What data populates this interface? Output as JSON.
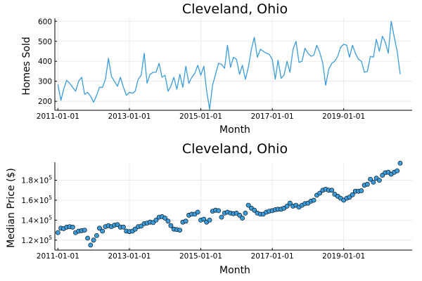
{
  "chart_data": [
    {
      "type": "line",
      "title": "Cleveland, Ohio",
      "xlabel": "Month",
      "ylabel": "Homes Sold",
      "x_type": "date",
      "x_start": "2011-01-01",
      "x_step": "1 month",
      "xlim": [
        "2010-12-01",
        "2020-12-01"
      ],
      "ylim": [
        155,
        615
      ],
      "xticks": [
        "2011-01-01",
        "2013-01-01",
        "2015-01-01",
        "2017-01-01",
        "2019-01-01"
      ],
      "yticks": [
        200,
        300,
        400,
        500,
        600
      ],
      "ytick_labels": [
        "200",
        "300",
        "400",
        "500",
        "600"
      ],
      "grid": true,
      "color": "#3b9cdb",
      "series": [
        {
          "values": [
            285,
            205,
            260,
            305,
            290,
            270,
            250,
            300,
            320,
            235,
            245,
            225,
            195,
            230,
            270,
            270,
            310,
            415,
            325,
            300,
            275,
            320,
            270,
            230,
            245,
            240,
            250,
            310,
            330,
            440,
            290,
            335,
            345,
            345,
            390,
            320,
            330,
            250,
            275,
            320,
            260,
            335,
            270,
            375,
            290,
            320,
            340,
            380,
            330,
            375,
            255,
            160,
            280,
            335,
            390,
            385,
            365,
            480,
            370,
            420,
            410,
            335,
            380,
            310,
            370,
            460,
            520,
            420,
            460,
            450,
            440,
            435,
            410,
            310,
            405,
            315,
            330,
            400,
            345,
            460,
            500,
            395,
            400,
            465,
            440,
            425,
            430,
            480,
            445,
            390,
            280,
            360,
            390,
            400,
            425,
            470,
            485,
            480,
            420,
            480,
            440,
            410,
            400,
            345,
            350,
            425,
            420,
            510,
            450,
            525,
            495,
            440,
            600,
            520,
            450,
            335
          ]
        }
      ]
    },
    {
      "type": "scatter",
      "title": "Cleveland, Ohio",
      "xlabel": "Month",
      "ylabel": "Median Price ($)",
      "x_type": "date",
      "x_start": "2011-01-01",
      "x_step": "1 month",
      "xlim": [
        "2010-12-01",
        "2020-12-01"
      ],
      "ylim": [
        110000,
        198000
      ],
      "xticks": [
        "2011-01-01",
        "2013-01-01",
        "2015-01-01",
        "2017-01-01",
        "2019-01-01"
      ],
      "yticks": [
        120000,
        140000,
        160000,
        180000
      ],
      "ytick_labels": [
        {
          "base": "1.2×10",
          "exp": "5"
        },
        {
          "base": "1.4×10",
          "exp": "5"
        },
        {
          "base": "1.6×10",
          "exp": "5"
        },
        {
          "base": "1.8×10",
          "exp": "5"
        }
      ],
      "grid": true,
      "color": "#3b9cdb",
      "series": [
        {
          "values": [
            127500,
            132000,
            131500,
            133000,
            133500,
            133000,
            127500,
            129000,
            129500,
            130000,
            122000,
            115000,
            120000,
            124500,
            132000,
            129000,
            133500,
            134500,
            133500,
            135000,
            135500,
            133000,
            133000,
            129000,
            128500,
            129000,
            131000,
            133500,
            134000,
            136500,
            137000,
            138000,
            137500,
            140000,
            143000,
            143500,
            142000,
            139000,
            134500,
            131000,
            130500,
            130000,
            138000,
            139000,
            145000,
            146000,
            146000,
            148000,
            140000,
            141000,
            138000,
            140000,
            149000,
            150000,
            149500,
            143000,
            147000,
            148000,
            147000,
            146500,
            147000,
            145000,
            142000,
            147000,
            155000,
            152000,
            150000,
            147000,
            146000,
            146000,
            148000,
            149000,
            149500,
            150500,
            151000,
            151000,
            152000,
            154000,
            157000,
            154000,
            155000,
            153000,
            155000,
            156500,
            157000,
            159000,
            160000,
            165000,
            167000,
            170000,
            171000,
            170000,
            170000,
            166000,
            164000,
            162000,
            160000,
            162000,
            163000,
            165500,
            169000,
            169000,
            169500,
            175000,
            176000,
            181000,
            178000,
            182000,
            180000,
            185000,
            187500,
            188000,
            186000,
            188000,
            189500,
            197000
          ]
        }
      ]
    }
  ]
}
